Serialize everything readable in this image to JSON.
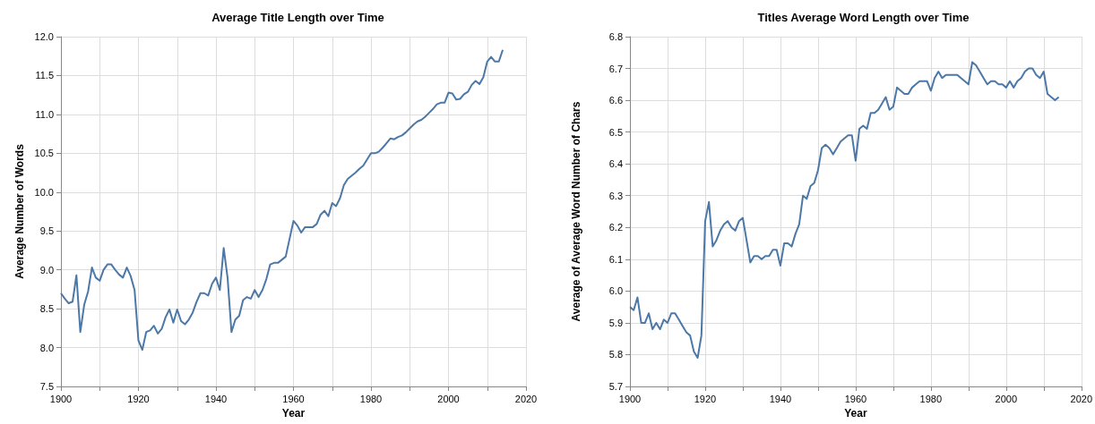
{
  "chart_data": [
    {
      "type": "line",
      "title": "Average Title Length over Time",
      "xlabel": "Year",
      "ylabel": "Average Number of Words",
      "grid": true,
      "marker": "none",
      "line_style": "solid",
      "x": [
        1900,
        1901,
        1902,
        1903,
        1904,
        1905,
        1906,
        1907,
        1908,
        1909,
        1910,
        1911,
        1912,
        1913,
        1914,
        1915,
        1916,
        1917,
        1918,
        1919,
        1920,
        1921,
        1922,
        1923,
        1924,
        1925,
        1926,
        1927,
        1928,
        1929,
        1930,
        1931,
        1932,
        1933,
        1934,
        1935,
        1936,
        1937,
        1938,
        1939,
        1940,
        1941,
        1942,
        1943,
        1944,
        1945,
        1946,
        1947,
        1948,
        1949,
        1950,
        1951,
        1952,
        1953,
        1954,
        1955,
        1956,
        1957,
        1958,
        1959,
        1960,
        1961,
        1962,
        1963,
        1964,
        1965,
        1966,
        1967,
        1968,
        1969,
        1970,
        1971,
        1972,
        1973,
        1974,
        1975,
        1976,
        1977,
        1978,
        1979,
        1980,
        1981,
        1982,
        1983,
        1984,
        1985,
        1986,
        1987,
        1988,
        1989,
        1990,
        1991,
        1992,
        1993,
        1994,
        1995,
        1996,
        1997,
        1998,
        1999,
        2000,
        2001,
        2002,
        2003,
        2004,
        2005,
        2006,
        2007,
        2008,
        2009,
        2010,
        2011,
        2012,
        2013,
        2014
      ],
      "series": [
        {
          "color": "#4c78a8",
          "values": [
            8.7,
            8.63,
            8.57,
            8.59,
            8.93,
            8.2,
            8.55,
            8.72,
            9.03,
            8.9,
            8.86,
            9.0,
            9.07,
            9.07,
            9.0,
            8.94,
            8.9,
            9.03,
            8.92,
            8.74,
            8.09,
            7.97,
            8.2,
            8.22,
            8.28,
            8.18,
            8.24,
            8.39,
            8.49,
            8.32,
            8.49,
            8.34,
            8.3,
            8.36,
            8.45,
            8.59,
            8.7,
            8.7,
            8.67,
            8.82,
            8.9,
            8.74,
            9.28,
            8.9,
            8.2,
            8.36,
            8.41,
            8.61,
            8.65,
            8.63,
            8.74,
            8.65,
            8.74,
            8.88,
            9.07,
            9.09,
            9.09,
            9.13,
            9.17,
            9.4,
            9.63,
            9.57,
            9.48,
            9.55,
            9.55,
            9.55,
            9.59,
            9.71,
            9.76,
            9.69,
            9.86,
            9.82,
            9.92,
            10.09,
            10.17,
            10.21,
            10.25,
            10.3,
            10.34,
            10.42,
            10.5,
            10.5,
            10.52,
            10.57,
            10.63,
            10.69,
            10.68,
            10.71,
            10.73,
            10.77,
            10.82,
            10.87,
            10.91,
            10.93,
            10.97,
            11.02,
            11.07,
            11.13,
            11.15,
            11.15,
            11.28,
            11.27,
            11.19,
            11.2,
            11.26,
            11.29,
            11.38,
            11.43,
            11.39,
            11.48,
            11.68,
            11.74,
            11.68,
            11.68,
            11.83
          ]
        }
      ],
      "xlim": [
        1900,
        2020
      ],
      "xticks": [
        1900,
        {
          "value": 1910,
          "label": null
        },
        1920,
        {
          "value": 1930,
          "label": null
        },
        1940,
        {
          "value": 1950,
          "label": null
        },
        1960,
        {
          "value": 1970,
          "label": null
        },
        1980,
        {
          "value": 1990,
          "label": null
        },
        2000,
        {
          "value": 2010,
          "label": null
        },
        2020
      ],
      "ylim": [
        7.5,
        12
      ],
      "yticks": [
        7.5,
        {
          "value": 8,
          "label": "8.0"
        },
        8.5,
        {
          "value": 9,
          "label": "9.0"
        },
        9.5,
        {
          "value": 10,
          "label": "10.0"
        },
        10.5,
        {
          "value": 11,
          "label": "11.0"
        },
        11.5,
        {
          "value": 12,
          "label": "12.0"
        }
      ]
    },
    {
      "type": "line",
      "title": "Titles Average Word Length over Time",
      "xlabel": "Year",
      "ylabel": "Average of Average Word Number of Chars",
      "grid": true,
      "marker": "none",
      "line_style": "solid",
      "x": [
        1900,
        1901,
        1902,
        1903,
        1904,
        1905,
        1906,
        1907,
        1908,
        1909,
        1910,
        1911,
        1912,
        1913,
        1914,
        1915,
        1916,
        1917,
        1918,
        1919,
        1920,
        1921,
        1922,
        1923,
        1924,
        1925,
        1926,
        1927,
        1928,
        1929,
        1930,
        1931,
        1932,
        1933,
        1934,
        1935,
        1936,
        1937,
        1938,
        1939,
        1940,
        1941,
        1942,
        1943,
        1944,
        1945,
        1946,
        1947,
        1948,
        1949,
        1950,
        1951,
        1952,
        1953,
        1954,
        1955,
        1956,
        1957,
        1958,
        1959,
        1960,
        1961,
        1962,
        1963,
        1964,
        1965,
        1966,
        1967,
        1968,
        1969,
        1970,
        1971,
        1972,
        1973,
        1974,
        1975,
        1976,
        1977,
        1978,
        1979,
        1980,
        1981,
        1982,
        1983,
        1984,
        1985,
        1986,
        1987,
        1988,
        1989,
        1990,
        1991,
        1992,
        1993,
        1994,
        1995,
        1996,
        1997,
        1998,
        1999,
        2000,
        2001,
        2002,
        2003,
        2004,
        2005,
        2006,
        2007,
        2008,
        2009,
        2010,
        2011,
        2012,
        2013,
        2014
      ],
      "series": [
        {
          "color": "#4c78a8",
          "values": [
            5.95,
            5.94,
            5.98,
            5.9,
            5.9,
            5.93,
            5.88,
            5.9,
            5.88,
            5.91,
            5.9,
            5.93,
            5.93,
            5.91,
            5.89,
            5.87,
            5.86,
            5.81,
            5.79,
            5.86,
            6.22,
            6.28,
            6.14,
            6.16,
            6.19,
            6.21,
            6.22,
            6.2,
            6.19,
            6.22,
            6.23,
            6.16,
            6.09,
            6.11,
            6.11,
            6.1,
            6.11,
            6.11,
            6.13,
            6.13,
            6.08,
            6.15,
            6.15,
            6.14,
            6.18,
            6.21,
            6.3,
            6.29,
            6.33,
            6.34,
            6.38,
            6.45,
            6.46,
            6.45,
            6.43,
            6.45,
            6.47,
            6.48,
            6.49,
            6.49,
            6.41,
            6.51,
            6.52,
            6.51,
            6.56,
            6.56,
            6.57,
            6.59,
            6.61,
            6.57,
            6.58,
            6.64,
            6.63,
            6.62,
            6.62,
            6.64,
            6.65,
            6.66,
            6.66,
            6.66,
            6.63,
            6.67,
            6.69,
            6.67,
            6.68,
            6.68,
            6.68,
            6.68,
            6.67,
            6.66,
            6.65,
            6.72,
            6.71,
            6.69,
            6.67,
            6.65,
            6.66,
            6.66,
            6.65,
            6.65,
            6.64,
            6.66,
            6.64,
            6.66,
            6.67,
            6.69,
            6.7,
            6.7,
            6.68,
            6.67,
            6.69,
            6.62,
            6.61,
            6.6,
            6.61
          ]
        }
      ],
      "xlim": [
        1900,
        2020
      ],
      "xticks": [
        1900,
        {
          "value": 1910,
          "label": null
        },
        1920,
        {
          "value": 1930,
          "label": null
        },
        1940,
        {
          "value": 1950,
          "label": null
        },
        1960,
        {
          "value": 1970,
          "label": null
        },
        1980,
        {
          "value": 1990,
          "label": null
        },
        2000,
        {
          "value": 2010,
          "label": null
        },
        2020
      ],
      "ylim": [
        5.7,
        6.8
      ],
      "yticks": [
        5.7,
        5.8,
        5.9,
        {
          "value": 6,
          "label": "6.0"
        },
        6.1,
        6.2,
        6.3,
        6.4,
        6.5,
        6.6,
        6.7,
        6.8
      ]
    }
  ]
}
